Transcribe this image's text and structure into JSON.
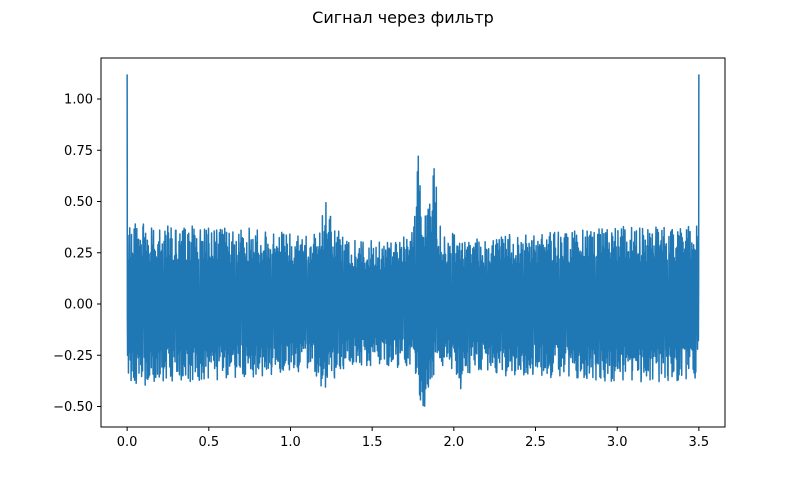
{
  "chart_data": {
    "type": "line",
    "title": "Сигнал через фильтр",
    "xlabel": "",
    "ylabel": "",
    "xlim": [
      -0.16,
      3.66
    ],
    "ylim": [
      -0.6,
      1.2
    ],
    "x_ticks": [
      0.0,
      0.5,
      1.0,
      1.5,
      2.0,
      2.5,
      3.0,
      3.5
    ],
    "x_tick_labels": [
      "0.0",
      "0.5",
      "1.0",
      "1.5",
      "2.0",
      "2.5",
      "3.0",
      "3.5"
    ],
    "y_ticks": [
      -0.5,
      -0.25,
      0.0,
      0.25,
      0.5,
      0.75,
      1.0
    ],
    "y_tick_labels": [
      "−0.50",
      "−0.25",
      "0.00",
      "0.25",
      "0.50",
      "0.75",
      "1.00"
    ],
    "grid": false,
    "line_color": "#1f77b4",
    "series": [
      {
        "values_description_note": null,
        "x": [
          0.0,
          0.003,
          0.01,
          0.02,
          0.04,
          0.06,
          0.08,
          0.1,
          0.15,
          0.2,
          0.25,
          0.3,
          0.35,
          0.4,
          0.45,
          0.5,
          0.55,
          0.6,
          0.65,
          0.7,
          0.75,
          0.8,
          0.85,
          0.9,
          0.95,
          1.0,
          1.05,
          1.1,
          1.15,
          1.18,
          1.2,
          1.22,
          1.25,
          1.3,
          1.35,
          1.4,
          1.45,
          1.5,
          1.55,
          1.6,
          1.65,
          1.7,
          1.75,
          1.78,
          1.8,
          1.82,
          1.85,
          1.88,
          1.9,
          1.95,
          2.0,
          2.05,
          2.1,
          2.15,
          2.2,
          2.25,
          2.3,
          2.35,
          2.4,
          2.45,
          2.5,
          2.55,
          2.6,
          2.65,
          2.7,
          2.75,
          2.8,
          2.85,
          2.9,
          2.95,
          3.0,
          3.05,
          3.1,
          3.15,
          3.2,
          3.25,
          3.3,
          3.35,
          3.4,
          3.45,
          3.48,
          3.497,
          3.5
        ],
        "upper": [
          1.12,
          0.41,
          0.36,
          0.38,
          0.39,
          0.39,
          0.38,
          0.39,
          0.37,
          0.36,
          0.38,
          0.36,
          0.37,
          0.38,
          0.36,
          0.37,
          0.36,
          0.37,
          0.35,
          0.36,
          0.37,
          0.36,
          0.35,
          0.34,
          0.35,
          0.34,
          0.33,
          0.33,
          0.34,
          0.4,
          0.44,
          0.57,
          0.4,
          0.35,
          0.3,
          0.31,
          0.3,
          0.31,
          0.3,
          0.3,
          0.3,
          0.33,
          0.35,
          0.76,
          0.48,
          0.47,
          0.46,
          0.83,
          0.42,
          0.31,
          0.35,
          0.3,
          0.3,
          0.32,
          0.3,
          0.31,
          0.33,
          0.34,
          0.32,
          0.34,
          0.33,
          0.34,
          0.35,
          0.35,
          0.34,
          0.36,
          0.36,
          0.35,
          0.37,
          0.36,
          0.37,
          0.38,
          0.37,
          0.37,
          0.36,
          0.38,
          0.37,
          0.36,
          0.37,
          0.38,
          0.36,
          0.41,
          1.12
        ],
        "lower": [
          -0.02,
          -0.35,
          -0.36,
          -0.38,
          -0.41,
          -0.38,
          -0.39,
          -0.4,
          -0.38,
          -0.37,
          -0.38,
          -0.37,
          -0.37,
          -0.38,
          -0.37,
          -0.36,
          -0.37,
          -0.36,
          -0.36,
          -0.35,
          -0.36,
          -0.35,
          -0.35,
          -0.34,
          -0.33,
          -0.32,
          -0.33,
          -0.31,
          -0.33,
          -0.4,
          -0.42,
          -0.4,
          -0.38,
          -0.33,
          -0.3,
          -0.29,
          -0.3,
          -0.3,
          -0.29,
          -0.3,
          -0.31,
          -0.3,
          -0.3,
          -0.37,
          -0.53,
          -0.5,
          -0.46,
          -0.33,
          -0.3,
          -0.3,
          -0.32,
          -0.43,
          -0.33,
          -0.32,
          -0.32,
          -0.33,
          -0.35,
          -0.35,
          -0.34,
          -0.35,
          -0.34,
          -0.35,
          -0.36,
          -0.35,
          -0.35,
          -0.36,
          -0.36,
          -0.37,
          -0.37,
          -0.38,
          -0.37,
          -0.37,
          -0.37,
          -0.38,
          -0.37,
          -0.38,
          -0.37,
          -0.38,
          -0.36,
          -0.37,
          -0.36,
          -0.35,
          -0.02
        ]
      }
    ]
  }
}
